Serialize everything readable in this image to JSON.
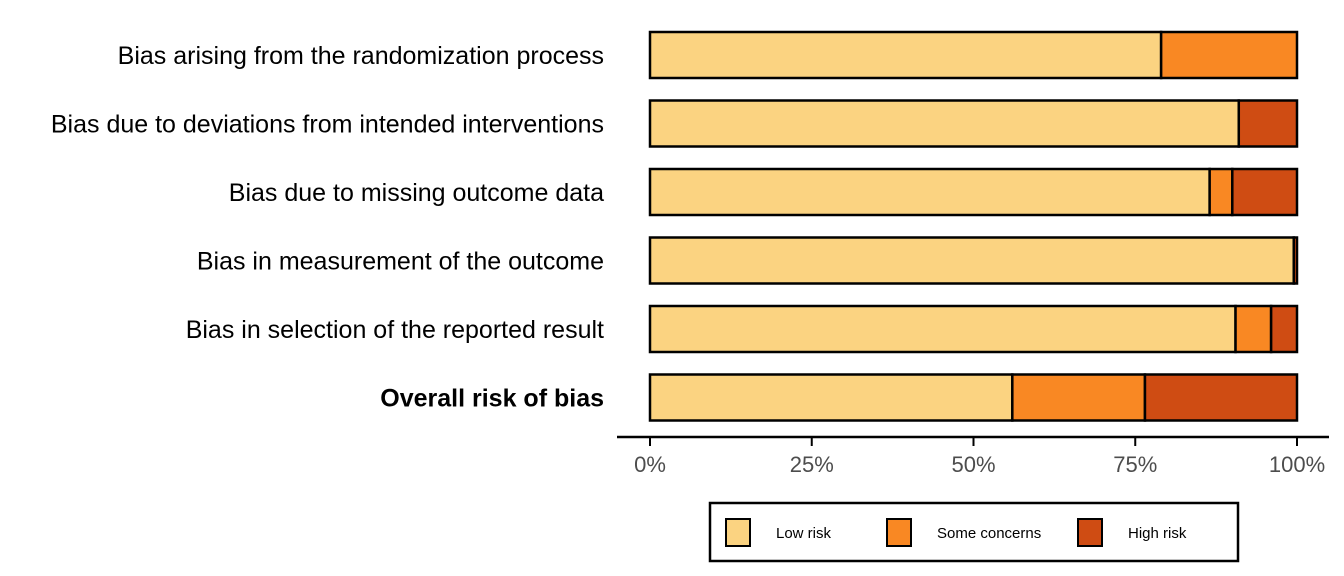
{
  "chart_data": {
    "type": "bar",
    "orientation": "horizontal",
    "stacked": true,
    "percent": true,
    "categories": [
      "Bias arising from the randomization process",
      "Bias due to deviations from intended interventions",
      "Bias due to missing outcome data",
      "Bias in measurement of the outcome",
      "Bias in selection of the reported result",
      "Overall risk of bias"
    ],
    "bold_category": "Overall risk of bias",
    "series": [
      {
        "name": "Low risk",
        "color": "#FBD381",
        "values": [
          79,
          91,
          86.5,
          99.5,
          90.5,
          56
        ]
      },
      {
        "name": "Some concerns",
        "color": "#F98823",
        "values": [
          21,
          0,
          3.5,
          0,
          5.5,
          20.5
        ]
      },
      {
        "name": "High risk",
        "color": "#CF4C13",
        "values": [
          0,
          9,
          10,
          0.5,
          4,
          23.5
        ]
      }
    ],
    "x_ticks": [
      "0%",
      "25%",
      "50%",
      "75%",
      "100%"
    ],
    "xlim": [
      0,
      100
    ],
    "grid": false,
    "legend_position": "bottom"
  }
}
